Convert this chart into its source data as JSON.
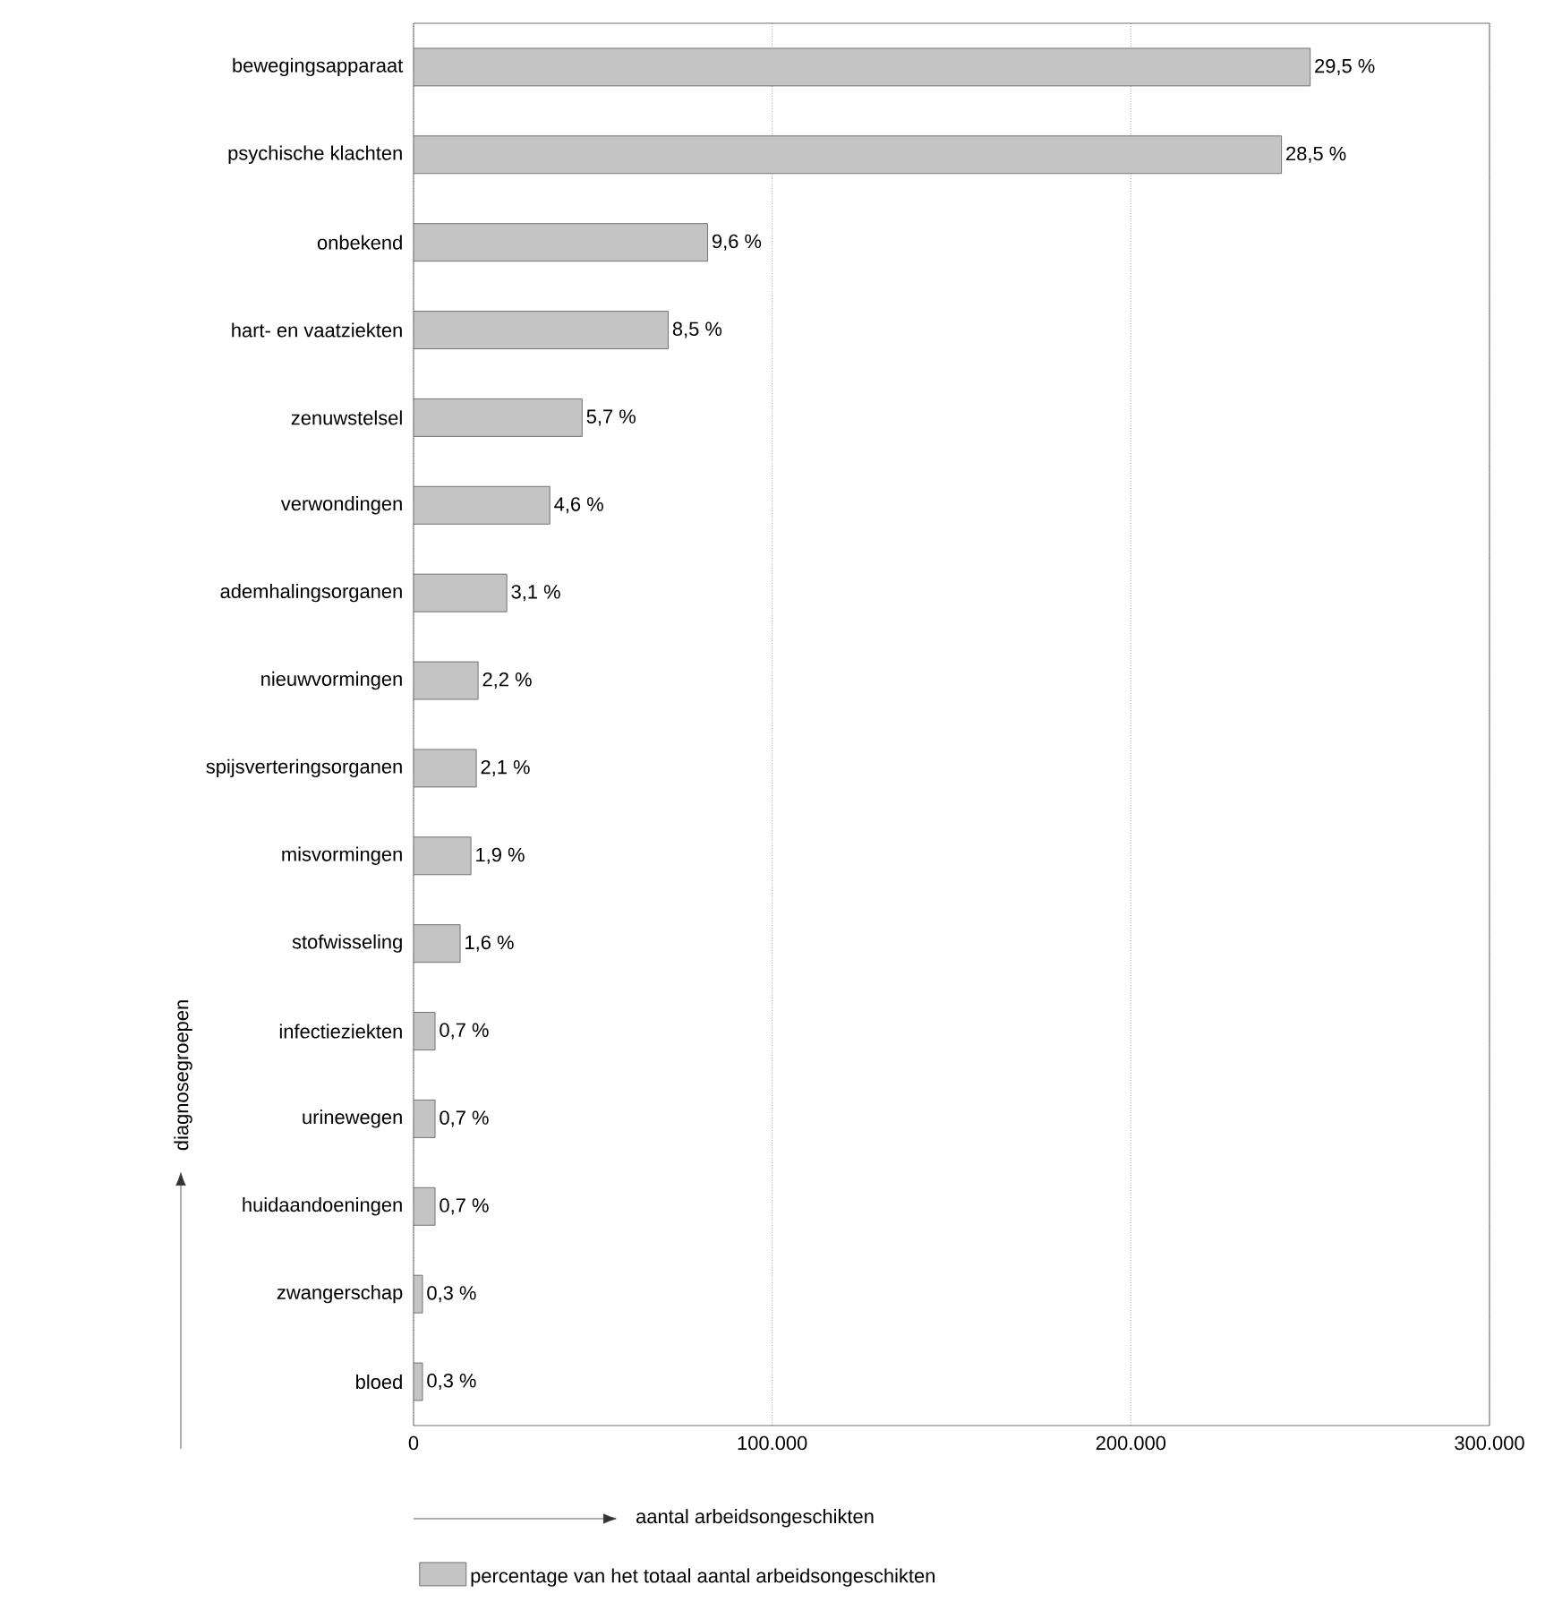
{
  "chart_data": {
    "type": "bar",
    "orientation": "horizontal",
    "xlabel": "aantal arbeidsongeschikten",
    "ylabel": "diagnosegroepen",
    "categories": [
      "bewegingsapparaat",
      "psychische klachten",
      "onbekend",
      "hart- en vaatziekten",
      "zenuwstelsel",
      "verwondingen",
      "ademhalingsorganen",
      "nieuwvormingen",
      "spijsverteringsorganen",
      "misvormingen",
      "stofwisseling",
      "infectieziekten",
      "urinewegen",
      "huidaandoeningen",
      "zwangerschap",
      "bloed"
    ],
    "series": [
      {
        "name": "percentage van het totaal aantal arbeidsongeschikten",
        "color": "#c4c4c4",
        "values": [
          250000,
          242000,
          82000,
          71000,
          47000,
          38000,
          26000,
          18000,
          17500,
          16000,
          13000,
          6000,
          6000,
          6000,
          2500,
          2500
        ]
      }
    ],
    "annotations": [
      {
        "text": "29,5 %",
        "x": 250000,
        "y": "bewegingsapparaat"
      },
      {
        "text": "28,5 %",
        "x": 242000,
        "y": "psychische klachten"
      },
      {
        "text": "9,6 %",
        "x": 82000,
        "y": "onbekend"
      },
      {
        "text": "8,5 %",
        "x": 71000,
        "y": "hart- en vaatziekten"
      },
      {
        "text": "5,7 %",
        "x": 47000,
        "y": "zenuwstelsel"
      },
      {
        "text": "4,6 %",
        "x": 38000,
        "y": "verwondingen"
      },
      {
        "text": "3,1 %",
        "x": 26000,
        "y": "ademhalingsorganen"
      },
      {
        "text": "2,2 %",
        "x": 18000,
        "y": "nieuwvormingen"
      },
      {
        "text": "2,1 %",
        "x": 17500,
        "y": "spijsverteringsorganen"
      },
      {
        "text": "1,9 %",
        "x": 16000,
        "y": "misvormingen"
      },
      {
        "text": "1,6 %",
        "x": 13000,
        "y": "stofwisseling"
      },
      {
        "text": "0,7 %",
        "x": 6000,
        "y": "infectieziekten"
      },
      {
        "text": "0,7 %",
        "x": 6000,
        "y": "urinewegen"
      },
      {
        "text": "0,7 %",
        "x": 6000,
        "y": "huidaandoeningen"
      },
      {
        "text": "0,3 %",
        "x": 2500,
        "y": "zwangerschap"
      },
      {
        "text": "0,3 %",
        "x": 2500,
        "y": "bloed"
      }
    ],
    "xlim": [
      0,
      300000
    ],
    "xticks": [
      {
        "value": 0,
        "label": "0"
      },
      {
        "value": 100000,
        "label": "100.000"
      },
      {
        "value": 200000,
        "label": "200.000"
      },
      {
        "value": 300000,
        "label": "300.000"
      }
    ],
    "grid": "x",
    "legend": "bottom"
  }
}
